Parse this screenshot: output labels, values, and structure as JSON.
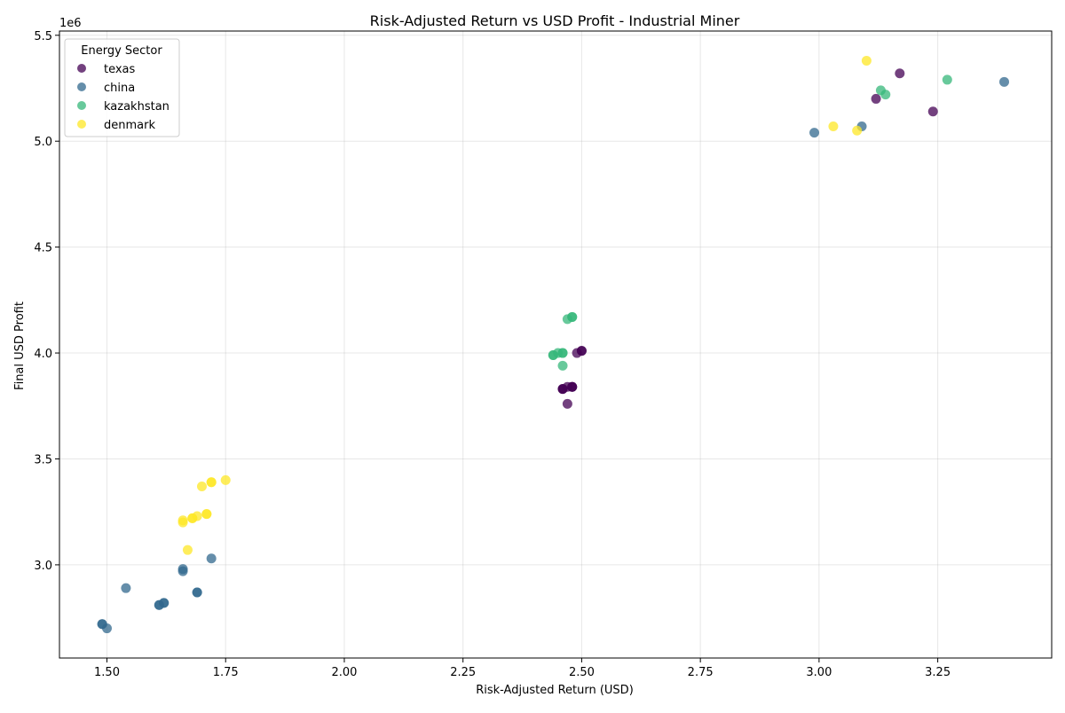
{
  "chart_data": {
    "type": "scatter",
    "title": "Risk-Adjusted Return vs USD Profit - Industrial Miner",
    "xlabel": "Risk-Adjusted Return (USD)",
    "ylabel": "Final USD Profit",
    "y_offset_text": "1e6",
    "xlim": [
      1.4,
      3.49
    ],
    "ylim": [
      2.56,
      5.52
    ],
    "x_ticks": [
      1.5,
      1.75,
      2.0,
      2.25,
      2.5,
      2.75,
      3.0,
      3.25
    ],
    "x_tick_labels": [
      "1.50",
      "1.75",
      "2.00",
      "2.25",
      "2.50",
      "2.75",
      "3.00",
      "3.25"
    ],
    "y_ticks": [
      3.0,
      3.5,
      4.0,
      4.5,
      5.0,
      5.5
    ],
    "y_tick_labels": [
      "3.0",
      "3.5",
      "4.0",
      "4.5",
      "5.0",
      "5.5"
    ],
    "grid": true,
    "legend": {
      "title": "Energy Sector",
      "placement": "top-left"
    },
    "series": [
      {
        "name": "texas",
        "color": "#440154",
        "points": [
          [
            2.46,
            3.83
          ],
          [
            2.46,
            3.83
          ],
          [
            2.46,
            3.83
          ],
          [
            2.47,
            3.84
          ],
          [
            2.48,
            3.84
          ],
          [
            2.48,
            3.84
          ],
          [
            2.48,
            3.84
          ],
          [
            2.47,
            3.76
          ],
          [
            2.49,
            4.0
          ],
          [
            2.5,
            4.01
          ],
          [
            2.5,
            4.01
          ],
          [
            3.12,
            5.2
          ],
          [
            3.17,
            5.32
          ],
          [
            3.24,
            5.14
          ]
        ]
      },
      {
        "name": "china",
        "color": "#31688e",
        "points": [
          [
            1.49,
            2.72
          ],
          [
            1.49,
            2.72
          ],
          [
            1.5,
            2.7
          ],
          [
            1.54,
            2.89
          ],
          [
            1.61,
            2.81
          ],
          [
            1.61,
            2.81
          ],
          [
            1.62,
            2.82
          ],
          [
            1.62,
            2.82
          ],
          [
            1.66,
            2.97
          ],
          [
            1.66,
            2.98
          ],
          [
            1.69,
            2.87
          ],
          [
            1.69,
            2.87
          ],
          [
            1.72,
            3.03
          ],
          [
            2.99,
            5.04
          ],
          [
            3.09,
            5.07
          ],
          [
            3.39,
            5.28
          ]
        ]
      },
      {
        "name": "kazakhstan",
        "color": "#35b779",
        "points": [
          [
            2.44,
            3.99
          ],
          [
            2.44,
            3.99
          ],
          [
            2.45,
            4.0
          ],
          [
            2.46,
            4.0
          ],
          [
            2.46,
            4.0
          ],
          [
            2.46,
            3.94
          ],
          [
            2.47,
            4.16
          ],
          [
            2.48,
            4.17
          ],
          [
            2.48,
            4.17
          ],
          [
            3.13,
            5.24
          ],
          [
            3.14,
            5.22
          ],
          [
            3.27,
            5.29
          ]
        ]
      },
      {
        "name": "denmark",
        "color": "#fde725",
        "points": [
          [
            1.66,
            3.2
          ],
          [
            1.66,
            3.21
          ],
          [
            1.67,
            3.07
          ],
          [
            1.68,
            3.22
          ],
          [
            1.68,
            3.22
          ],
          [
            1.69,
            3.23
          ],
          [
            1.7,
            3.37
          ],
          [
            1.71,
            3.24
          ],
          [
            1.71,
            3.24
          ],
          [
            1.72,
            3.39
          ],
          [
            1.72,
            3.39
          ],
          [
            1.75,
            3.4
          ],
          [
            3.03,
            5.07
          ],
          [
            3.08,
            5.05
          ],
          [
            3.1,
            5.38
          ]
        ]
      }
    ]
  }
}
